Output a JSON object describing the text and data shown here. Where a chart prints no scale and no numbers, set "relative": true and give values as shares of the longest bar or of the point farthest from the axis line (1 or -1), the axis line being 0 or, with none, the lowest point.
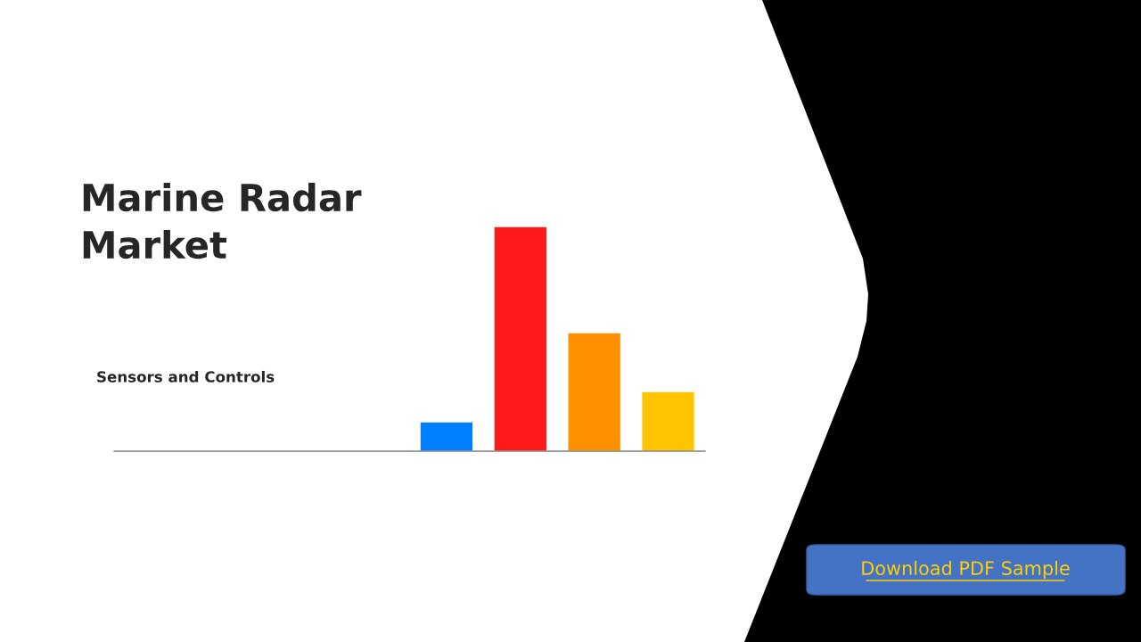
{
  "chart_data": {
    "type": "bar",
    "title": "Marine Radar Market",
    "subtitle": "Sensors and Controls",
    "categories": [
      null,
      null,
      null,
      null
    ],
    "values": [
      0.131,
      1,
      0.528,
      0.266
    ],
    "colors": [
      "#0080ff",
      "#ff1a1a",
      "#ff9000",
      "#ffc400"
    ],
    "relative": true,
    "grid": false,
    "legend": false,
    "annotations": [
      "Download PDF Sample"
    ]
  }
}
